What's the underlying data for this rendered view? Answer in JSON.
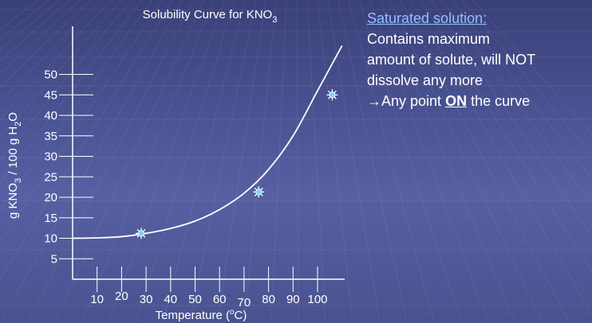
{
  "colors": {
    "background": "#4a5392",
    "text": "#ffffff",
    "heading": "#8fc1ff",
    "curve": "#ffffff",
    "marker": "#7fd0ff"
  },
  "chart_data": {
    "type": "line",
    "title": "Solubility Curve for KNO",
    "title_subscript": "3",
    "xlabel": "Temperature (",
    "xlabel_super": "o",
    "xlabel_end": "C)",
    "ylabel_parts": [
      "g KNO",
      "3",
      " / 100 g H",
      "2",
      "O"
    ],
    "xlim": [
      0,
      110
    ],
    "ylim": [
      0,
      57
    ],
    "x_ticks": [
      10,
      20,
      30,
      40,
      50,
      60,
      70,
      80,
      90,
      100
    ],
    "y_ticks": [
      5,
      10,
      15,
      20,
      25,
      30,
      35,
      40,
      45,
      50
    ],
    "x_tick_labels": [
      "10",
      "20",
      "30",
      "40",
      "50",
      "60",
      "70",
      "80",
      "90",
      "100"
    ],
    "y_tick_labels": [
      "5",
      "10",
      "15",
      "20",
      "25",
      "30",
      "35",
      "40",
      "45",
      "50"
    ],
    "series": [
      {
        "x": [
          0,
          10,
          20,
          30,
          40,
          50,
          60,
          70,
          80,
          90,
          100,
          110
        ],
        "y": [
          10.0,
          10.1,
          10.4,
          11.2,
          12.4,
          14.2,
          17.0,
          21.0,
          26.8,
          35.0,
          46.0,
          57.0
        ]
      }
    ],
    "marked_points": [
      {
        "x": 28,
        "y": 11.2
      },
      {
        "x": 76,
        "y": 21.3
      },
      {
        "x": 106,
        "y": 45.0
      }
    ]
  },
  "description": {
    "heading": "Saturated solution:",
    "line1": "Contains maximum",
    "line2": "amount of solute, will NOT",
    "line3": "dissolve any more",
    "line4_prefix": "→Any point ",
    "line4_bold": "ON",
    "line4_suffix": " the curve"
  }
}
